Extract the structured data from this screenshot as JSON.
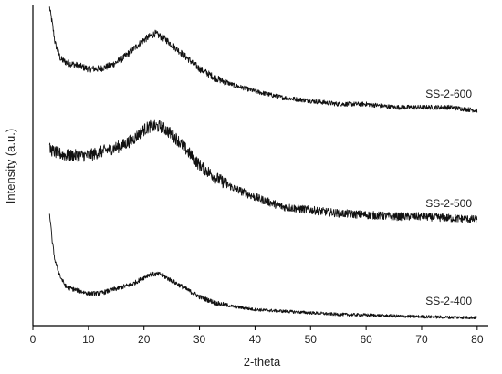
{
  "chart_data": {
    "type": "line",
    "title": "",
    "xlabel": "2-theta",
    "ylabel": "Intensity (a.u.)",
    "xlim": [
      0,
      82
    ],
    "x_ticks": [
      "0",
      "10",
      "20",
      "30",
      "40",
      "50",
      "60",
      "70",
      "80"
    ],
    "y_ticks_shown": false,
    "grid": false,
    "legend": "none",
    "series": [
      {
        "name": "SS-2-600",
        "x": [
          3,
          3.5,
          4,
          5,
          6,
          8,
          10,
          12,
          14,
          16,
          18,
          20,
          21,
          22,
          23,
          24,
          26,
          28,
          30,
          33,
          36,
          40,
          45,
          50,
          55,
          60,
          65,
          70,
          75,
          80
        ],
        "y": [
          0.99,
          0.94,
          0.88,
          0.83,
          0.82,
          0.81,
          0.8,
          0.8,
          0.81,
          0.83,
          0.86,
          0.89,
          0.9,
          0.91,
          0.9,
          0.89,
          0.86,
          0.83,
          0.8,
          0.77,
          0.75,
          0.73,
          0.71,
          0.7,
          0.69,
          0.69,
          0.68,
          0.68,
          0.68,
          0.67
        ],
        "noise": 0.009
      },
      {
        "name": "SS-2-500",
        "x": [
          3,
          4,
          6,
          8,
          10,
          12,
          14,
          16,
          18,
          20,
          21,
          22,
          23,
          24,
          26,
          28,
          30,
          33,
          36,
          40,
          45,
          50,
          55,
          60,
          65,
          70,
          75,
          80
        ],
        "y": [
          0.55,
          0.54,
          0.53,
          0.53,
          0.53,
          0.54,
          0.55,
          0.56,
          0.58,
          0.61,
          0.62,
          0.62,
          0.62,
          0.61,
          0.58,
          0.54,
          0.5,
          0.46,
          0.43,
          0.4,
          0.37,
          0.36,
          0.35,
          0.345,
          0.34,
          0.34,
          0.335,
          0.33
        ],
        "noise": 0.016
      },
      {
        "name": "SS-2-400",
        "x": [
          3,
          3.5,
          4,
          5,
          6,
          8,
          10,
          12,
          14,
          16,
          18,
          20,
          21,
          22,
          23,
          24,
          26,
          28,
          30,
          33,
          36,
          40,
          45,
          50,
          55,
          60,
          65,
          70,
          75,
          80
        ],
        "y": [
          0.35,
          0.26,
          0.2,
          0.15,
          0.12,
          0.11,
          0.1,
          0.1,
          0.11,
          0.12,
          0.13,
          0.15,
          0.16,
          0.16,
          0.16,
          0.15,
          0.13,
          0.11,
          0.09,
          0.07,
          0.06,
          0.05,
          0.045,
          0.04,
          0.035,
          0.033,
          0.03,
          0.028,
          0.026,
          0.025
        ],
        "noise": 0.006
      }
    ]
  }
}
